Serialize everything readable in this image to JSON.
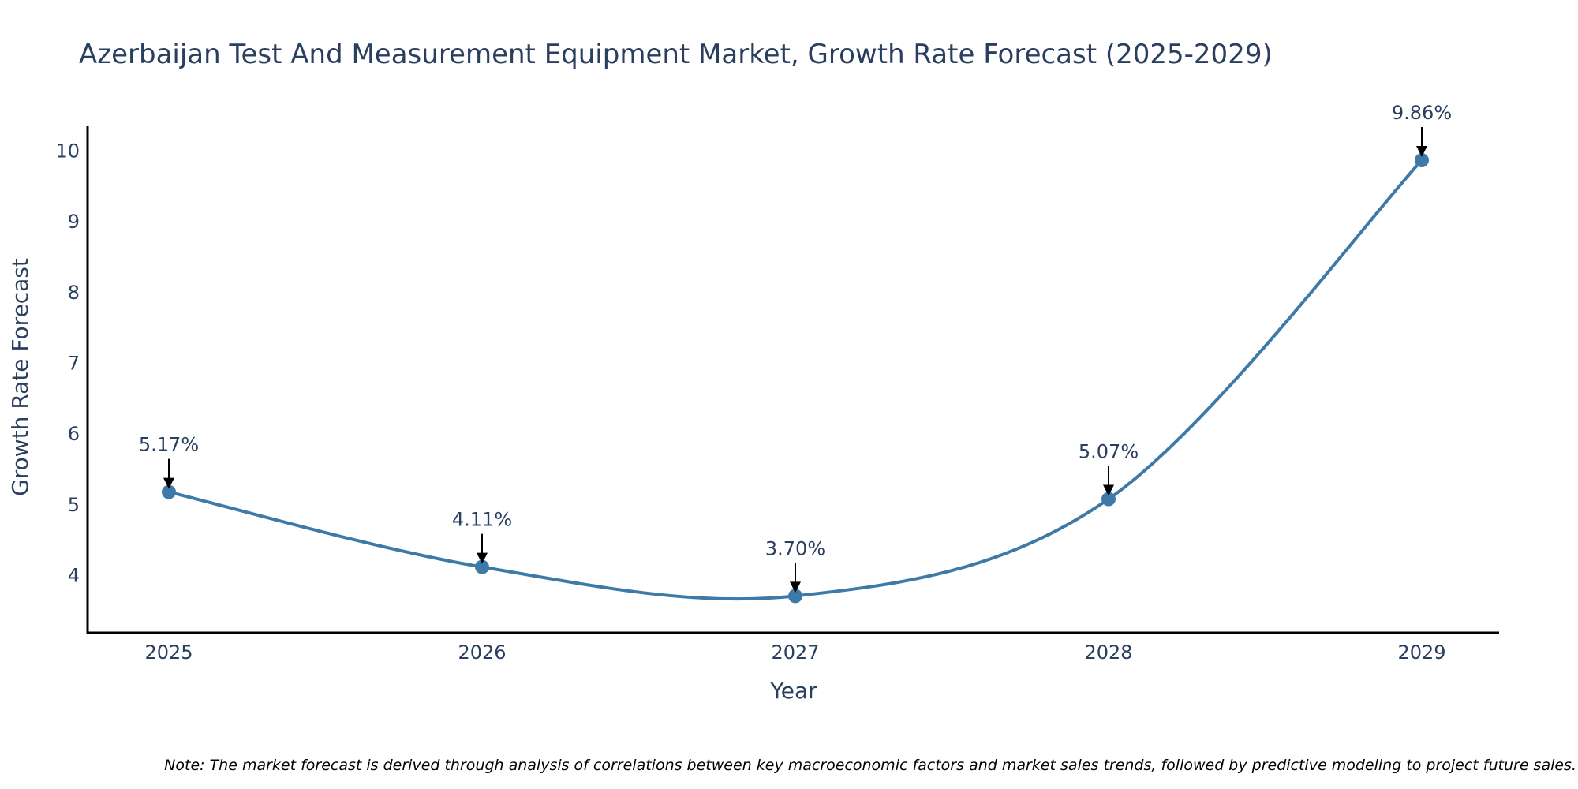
{
  "chart_data": {
    "type": "line",
    "title": "Azerbaijan Test And Measurement Equipment Market, Growth Rate Forecast (2025-2029)",
    "xlabel": "Year",
    "ylabel": "Growth Rate Forecast",
    "x": [
      "2025",
      "2026",
      "2027",
      "2028",
      "2029"
    ],
    "y_ticks": [
      4,
      5,
      6,
      7,
      8,
      9,
      10
    ],
    "ylim": [
      3.18,
      10.34
    ],
    "grid": false,
    "series": [
      {
        "name": "Growth Rate Forecast",
        "values": [
          5.17,
          4.11,
          3.7,
          5.07,
          9.86
        ],
        "labels": [
          "5.17%",
          "4.11%",
          "3.70%",
          "5.07%",
          "9.86%"
        ]
      }
    ],
    "line_color": "#3d7aa8",
    "marker_color": "#3d7aa8",
    "arrow_color": "#000000",
    "axis_color": "#000000",
    "text_color": "#2a3f5f",
    "note": "Note: The market forecast is derived through analysis of correlations between key macroeconomic factors and market sales trends, followed by predictive modeling to project future sales."
  }
}
